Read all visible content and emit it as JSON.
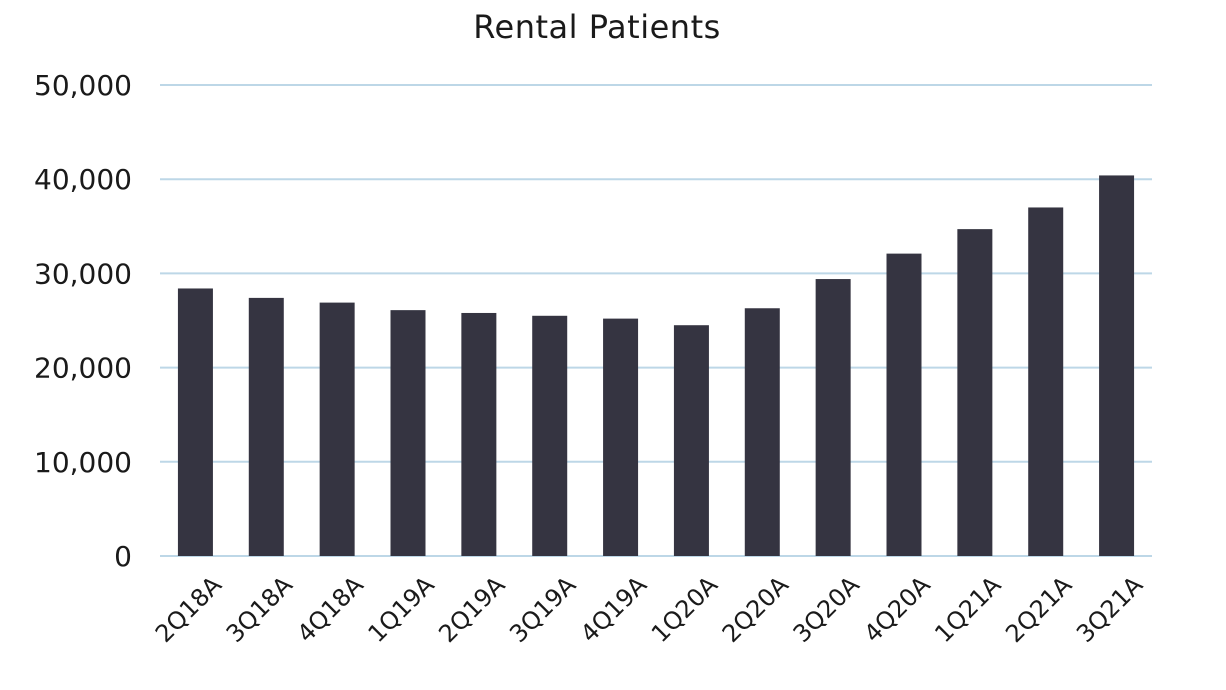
{
  "chart_data": {
    "type": "bar",
    "title": "Rental Patients",
    "xlabel": "",
    "ylabel": "",
    "categories": [
      "2Q18A",
      "3Q18A",
      "4Q18A",
      "1Q19A",
      "2Q19A",
      "3Q19A",
      "4Q19A",
      "1Q20A",
      "2Q20A",
      "3Q20A",
      "4Q20A",
      "1Q21A",
      "2Q21A",
      "3Q21A"
    ],
    "values": [
      28400,
      27400,
      26900,
      26100,
      25800,
      25500,
      25200,
      24500,
      26300,
      29400,
      32100,
      34700,
      37000,
      40400
    ],
    "ylim": [
      0,
      50000
    ],
    "yticks": [
      0,
      10000,
      20000,
      30000,
      40000,
      50000
    ],
    "ytick_labels": [
      "0",
      "10,000",
      "20,000",
      "30,000",
      "40,000",
      "50,000"
    ],
    "grid": true,
    "legend": "none",
    "bar_color": "#353441",
    "grid_color": "#bdd7e7"
  }
}
